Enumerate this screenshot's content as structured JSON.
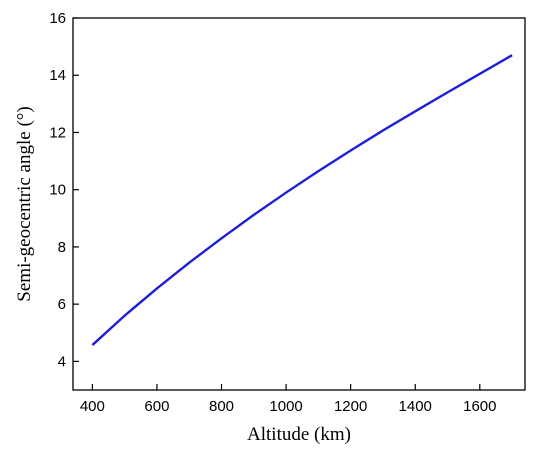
{
  "chart_data": {
    "type": "line",
    "xlabel": "Altitude (km)",
    "ylabel": "Semi-geocentric angle (°)",
    "xlim": [
      340,
      1740
    ],
    "ylim": [
      3,
      16
    ],
    "x_ticks": [
      400,
      600,
      800,
      1000,
      1200,
      1400,
      1600
    ],
    "y_ticks": [
      4,
      6,
      8,
      10,
      12,
      14,
      16
    ],
    "grid": false,
    "line_color": "#1f1fd6",
    "series": [
      {
        "x": [
          400,
          500,
          600,
          700,
          800,
          900,
          1000,
          1100,
          1200,
          1300,
          1400,
          1500,
          1600,
          1700
        ],
        "values": [
          4.57,
          5.6,
          6.55,
          7.45,
          8.3,
          9.12,
          9.9,
          10.65,
          11.37,
          12.07,
          12.74,
          13.4,
          14.05,
          14.7
        ]
      }
    ]
  }
}
